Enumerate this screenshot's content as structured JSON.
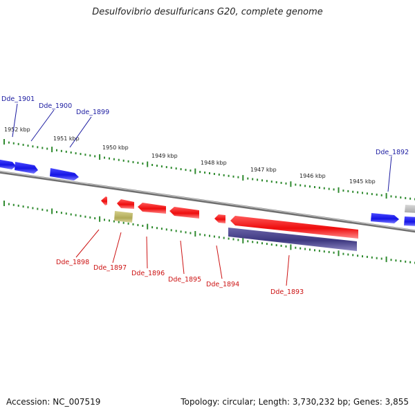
{
  "title": "Desulfovibrio desulfuricans G20, complete genome",
  "footer": {
    "accession": "Accession: NC_007519",
    "topology": "Topology: circular; Length: 3,730,232 bp; Genes: 3,855"
  },
  "scale_labels": [
    "1952 kbp",
    "1951 kbp",
    "1950 kbp",
    "1949 kbp",
    "1948 kbp",
    "1947 kbp",
    "1946 kbp",
    "1945 kbp"
  ],
  "genes_top": [
    "Dde_1901",
    "Dde_1900",
    "Dde_1899",
    "Dde_1892"
  ],
  "genes_bottom": [
    "Dde_1898",
    "Dde_1897",
    "Dde_1896",
    "Dde_1895",
    "Dde_1894",
    "Dde_1893"
  ],
  "colors": {
    "forward_gene": "#1a1aee",
    "reverse_gene": "#ee1111",
    "top_label": "#1a1aa0",
    "bottom_label": "#cc1111",
    "tick": "#2f8a2f",
    "backbone": "#8c8c8c",
    "rna": "#b8b26a",
    "pseudo": "#4a4488",
    "grey_gene": "#b8b8b8"
  }
}
